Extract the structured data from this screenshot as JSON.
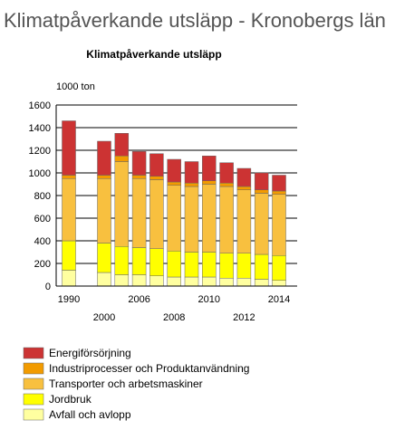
{
  "page_title": "Klimatpåverkande utsläpp - Kronobergs län",
  "chart_data": {
    "type": "stacked_bar",
    "title": "Klimatpåverkande utsläpp",
    "y_label": "1000 ton",
    "categories": [
      "1990",
      "2000",
      null,
      "2006",
      null,
      "2008",
      null,
      "2010",
      null,
      "2012",
      null,
      "2014"
    ],
    "series": [
      {
        "name": "Avfall och avlopp",
        "color": "#ffffa0",
        "values": [
          140,
          120,
          100,
          100,
          90,
          80,
          80,
          80,
          70,
          70,
          60,
          50
        ]
      },
      {
        "name": "Jordbruk",
        "color": "#ffff00",
        "values": [
          260,
          260,
          250,
          240,
          240,
          230,
          220,
          220,
          220,
          220,
          220,
          220
        ]
      },
      {
        "name": "Transporter och arbetsmaskiner",
        "color": "#f8c03f",
        "values": [
          550,
          570,
          750,
          610,
          610,
          580,
          580,
          600,
          590,
          560,
          540,
          540
        ]
      },
      {
        "name": "Industriprocesser och Produktanvändning",
        "color": "#f29b00",
        "values": [
          30,
          30,
          50,
          30,
          30,
          30,
          30,
          30,
          30,
          30,
          30,
          30
        ]
      },
      {
        "name": "Energiförsörjning",
        "color": "#cc3333",
        "values": [
          480,
          300,
          200,
          210,
          200,
          200,
          190,
          220,
          180,
          160,
          150,
          140
        ]
      }
    ],
    "ylim": [
      0,
      1600
    ],
    "yticks": [
      0,
      200,
      400,
      600,
      800,
      1000,
      1200,
      1400,
      1600
    ],
    "grid": true
  }
}
